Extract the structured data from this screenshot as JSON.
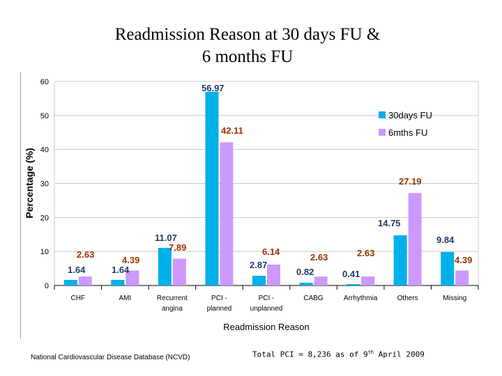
{
  "slide": {
    "title_line1": "Readmission Reason at 30 days FU &",
    "title_line2": "6 months FU",
    "footer_source": "National Cardiovascular Disease Database (NCVD)",
    "footer_note_prefix": "Total PCI = 8,236 as of  9",
    "footer_note_sup": "th",
    "footer_note_suffix": " April 2009"
  },
  "colors": {
    "series_30d": "#00b0e8",
    "series_6m": "#cc99ff",
    "label_30d": "#1f3864",
    "label_6m": "#993300"
  },
  "chart_data": {
    "type": "bar",
    "title": "Readmission Reason at 30 days FU & 6 months FU",
    "xlabel": "Readmission Reason",
    "ylabel": "Percentage (%)",
    "ylim": [
      0,
      60
    ],
    "yticks": [
      0,
      10,
      20,
      30,
      40,
      50,
      60
    ],
    "grid": true,
    "legend_position": "top-right",
    "categories": [
      [
        "CHF"
      ],
      [
        "AMI"
      ],
      [
        "Recurrent",
        "angina"
      ],
      [
        "PCI -",
        "planned"
      ],
      [
        "PCI -",
        "unplanned"
      ],
      [
        "CABG"
      ],
      [
        "Arrhythmia"
      ],
      [
        "Others"
      ],
      [
        "Missing"
      ]
    ],
    "series": [
      {
        "name": "30days FU",
        "values": [
          1.64,
          1.64,
          11.07,
          56.97,
          2.87,
          0.82,
          0.41,
          14.75,
          9.84
        ]
      },
      {
        "name": "6mths FU",
        "values": [
          2.63,
          4.39,
          7.89,
          42.11,
          6.14,
          2.63,
          2.63,
          27.19,
          4.39
        ]
      }
    ]
  }
}
